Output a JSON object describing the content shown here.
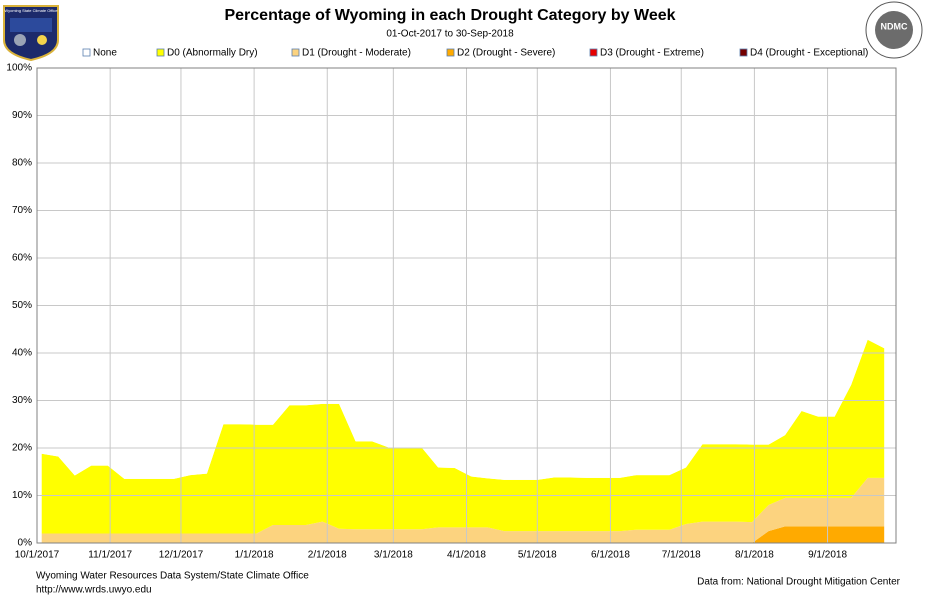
{
  "chart_data": {
    "type": "stacked_area",
    "title": "Percentage of Wyoming in each Drought Category by Week",
    "subtitle": "01-Oct-2017 to 30-Sep-2018",
    "x": [
      "10/3/2017",
      "10/10/2017",
      "10/17/2017",
      "10/24/2017",
      "10/31/2017",
      "11/7/2017",
      "11/14/2017",
      "11/21/2017",
      "11/28/2017",
      "12/5/2017",
      "12/12/2017",
      "12/19/2017",
      "12/26/2017",
      "1/2/2018",
      "1/9/2018",
      "1/16/2018",
      "1/23/2018",
      "1/30/2018",
      "2/6/2018",
      "2/13/2018",
      "2/20/2018",
      "2/27/2018",
      "3/6/2018",
      "3/13/2018",
      "3/20/2018",
      "3/27/2018",
      "4/3/2018",
      "4/10/2018",
      "4/17/2018",
      "4/24/2018",
      "5/1/2018",
      "5/8/2018",
      "5/15/2018",
      "5/22/2018",
      "5/29/2018",
      "6/5/2018",
      "6/12/2018",
      "6/19/2018",
      "6/26/2018",
      "7/3/2018",
      "7/10/2018",
      "7/17/2018",
      "7/24/2018",
      "7/31/2018",
      "8/7/2018",
      "8/14/2018",
      "8/21/2018",
      "8/28/2018",
      "9/4/2018",
      "9/11/2018",
      "9/18/2018",
      "9/25/2018"
    ],
    "series": [
      {
        "name": "None",
        "color": "#ffffff",
        "values": [
          81.2,
          81.8,
          85.8,
          83.7,
          83.7,
          86.5,
          86.5,
          86.5,
          86.5,
          85.7,
          85.4,
          75,
          75,
          75.1,
          75.1,
          71,
          71,
          70.7,
          70.7,
          78.6,
          78.6,
          79.9,
          79.9,
          79.9,
          84.1,
          84.2,
          86,
          86.4,
          86.7,
          86.7,
          86.7,
          86.2,
          86.2,
          86.3,
          86.3,
          86.3,
          85.7,
          85.7,
          85.7,
          84.1,
          79.2,
          79.2,
          79.2,
          79.3,
          79.3,
          77.3,
          72.2,
          73.4,
          73.4,
          66.7,
          57.2,
          59
        ]
      },
      {
        "name": "D0 (Abnormally Dry)",
        "color": "#ffff00",
        "values": [
          16.8,
          16.2,
          12.2,
          14.3,
          14.3,
          11.5,
          11.5,
          11.5,
          11.5,
          12.3,
          12.6,
          23,
          23,
          22.9,
          21.1,
          25.2,
          25.2,
          24.8,
          26.3,
          18.5,
          18.5,
          17.2,
          17.2,
          17.2,
          12.6,
          12.5,
          10.7,
          10.3,
          10.8,
          10.8,
          10.8,
          11.3,
          11.3,
          11.2,
          11.2,
          11.2,
          11.5,
          11.5,
          11.5,
          11.9,
          16.3,
          16.3,
          16.3,
          16.3,
          12.7,
          13.2,
          18.3,
          17.1,
          17.1,
          23.8,
          29.1,
          27.3
        ]
      },
      {
        "name": "D1 (Drought - Moderate)",
        "color": "#fcd37f",
        "values": [
          2,
          2,
          2,
          2,
          2,
          2,
          2,
          2,
          2,
          2,
          2,
          2,
          2,
          2,
          3.8,
          3.8,
          3.8,
          4.5,
          3,
          2.9,
          2.9,
          2.9,
          2.9,
          2.9,
          3.3,
          3.3,
          3.3,
          3.3,
          2.5,
          2.5,
          2.5,
          2.5,
          2.5,
          2.5,
          2.5,
          2.5,
          2.8,
          2.8,
          2.8,
          4,
          4.5,
          4.5,
          4.5,
          4.4,
          5.5,
          6,
          6,
          6,
          6,
          6,
          10.2,
          10.2
        ]
      },
      {
        "name": "D2 (Drought - Severe)",
        "color": "#ffaa00",
        "values": [
          0,
          0,
          0,
          0,
          0,
          0,
          0,
          0,
          0,
          0,
          0,
          0,
          0,
          0,
          0,
          0,
          0,
          0,
          0,
          0,
          0,
          0,
          0,
          0,
          0,
          0,
          0,
          0,
          0,
          0,
          0,
          0,
          0,
          0,
          0,
          0,
          0,
          0,
          0,
          0,
          0,
          0,
          0,
          0,
          2.5,
          3.5,
          3.5,
          3.5,
          3.5,
          3.5,
          3.5,
          3.5
        ]
      },
      {
        "name": "D3 (Drought - Extreme)",
        "color": "#e60000",
        "values": [
          0,
          0,
          0,
          0,
          0,
          0,
          0,
          0,
          0,
          0,
          0,
          0,
          0,
          0,
          0,
          0,
          0,
          0,
          0,
          0,
          0,
          0,
          0,
          0,
          0,
          0,
          0,
          0,
          0,
          0,
          0,
          0,
          0,
          0,
          0,
          0,
          0,
          0,
          0,
          0,
          0,
          0,
          0,
          0,
          0,
          0,
          0,
          0,
          0,
          0,
          0,
          0
        ]
      },
      {
        "name": "D4 (Drought - Exceptional)",
        "color": "#730000",
        "values": [
          0,
          0,
          0,
          0,
          0,
          0,
          0,
          0,
          0,
          0,
          0,
          0,
          0,
          0,
          0,
          0,
          0,
          0,
          0,
          0,
          0,
          0,
          0,
          0,
          0,
          0,
          0,
          0,
          0,
          0,
          0,
          0,
          0,
          0,
          0,
          0,
          0,
          0,
          0,
          0,
          0,
          0,
          0,
          0,
          0,
          0,
          0,
          0,
          0,
          0,
          0,
          0
        ]
      }
    ],
    "xlim": [
      "10/1/2017",
      "9/30/2018"
    ],
    "xticks": [
      "10/1/2017",
      "11/1/2017",
      "12/1/2017",
      "1/1/2018",
      "2/1/2018",
      "3/1/2018",
      "4/1/2018",
      "5/1/2018",
      "6/1/2018",
      "7/1/2018",
      "8/1/2018",
      "9/1/2018"
    ],
    "ylim": [
      0,
      100
    ],
    "yticks": [
      {
        "value": 0,
        "label": "0%"
      },
      {
        "value": 10,
        "label": "10%"
      },
      {
        "value": 20,
        "label": "20%"
      },
      {
        "value": 30,
        "label": "30%"
      },
      {
        "value": 40,
        "label": "40%"
      },
      {
        "value": 50,
        "label": "50%"
      },
      {
        "value": 60,
        "label": "60%"
      },
      {
        "value": 70,
        "label": "70%"
      },
      {
        "value": 80,
        "label": "80%"
      },
      {
        "value": 90,
        "label": "90%"
      },
      {
        "value": 100,
        "label": "100%"
      }
    ],
    "grid": true,
    "legend": "top"
  },
  "footer": {
    "left": [
      "Wyoming Water Resources Data System/State  Climate Office",
      "http://www.wrds.uwyo.edu"
    ],
    "right": "Data from: National Drought Mitigation Center"
  },
  "logos": {
    "left": "Wyoming State Climate Office",
    "right": "NDMC"
  }
}
